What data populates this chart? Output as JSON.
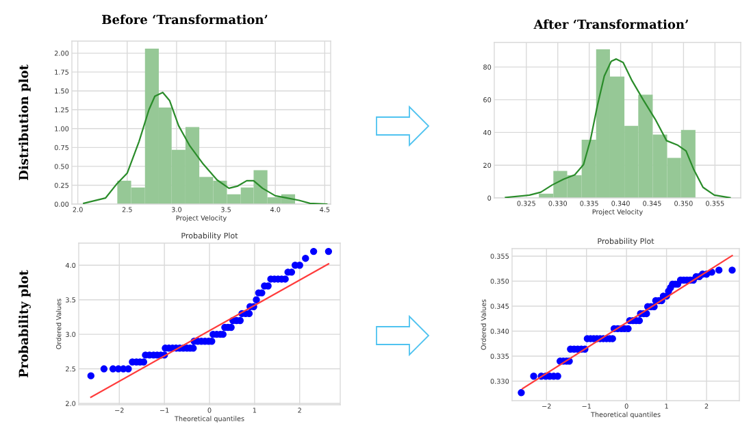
{
  "chart_data": [
    {
      "type": "histogram",
      "title": "Before ‘Transformation’",
      "xlabel": "Project Velocity",
      "annotations": [
        "Distribution plot"
      ],
      "series": [
        {
          "bins": [
            2.4,
            2.54,
            2.68,
            2.82,
            2.95,
            3.09,
            3.23,
            3.37,
            3.51,
            3.65,
            3.78,
            3.92,
            4.06,
            4.2
          ],
          "values": [
            0.31,
            0.22,
            2.06,
            1.28,
            0.72,
            1.02,
            0.36,
            0.31,
            0.13,
            0.22,
            0.45,
            0.09,
            0.13
          ],
          "color": "#96c896"
        },
        {
          "type": "line",
          "x": [
            2.06,
            2.28,
            2.39,
            2.5,
            2.62,
            2.72,
            2.78,
            2.86,
            2.93,
            3.02,
            3.13,
            3.27,
            3.41,
            3.53,
            3.62,
            3.71,
            3.78,
            3.87,
            4.0,
            4.12,
            4.24,
            4.35,
            4.52
          ],
          "values": [
            0.01,
            0.08,
            0.26,
            0.41,
            0.83,
            1.25,
            1.43,
            1.48,
            1.37,
            1.04,
            0.78,
            0.53,
            0.32,
            0.21,
            0.24,
            0.31,
            0.31,
            0.21,
            0.11,
            0.08,
            0.05,
            0.01,
            0.0
          ],
          "color": "#2a8c2a"
        }
      ],
      "xlim": [
        1.94,
        4.56
      ],
      "ylim": [
        0,
        2.16
      ],
      "xticks": [
        {
          "value": 2,
          "label": "2.0"
        },
        2.5,
        {
          "value": 3,
          "label": "3.0"
        },
        3.5,
        {
          "value": 4,
          "label": "4.0"
        },
        4.5
      ],
      "yticks": [
        {
          "value": 0,
          "label": "0.00"
        },
        {
          "value": 0.25,
          "label": "0.25"
        },
        {
          "value": 0.5,
          "label": "0.50"
        },
        {
          "value": 0.75,
          "label": "0.75"
        },
        {
          "value": 1.0,
          "label": "1.00"
        },
        {
          "value": 1.25,
          "label": "1.25"
        },
        {
          "value": 1.5,
          "label": "1.50"
        },
        {
          "value": 1.75,
          "label": "1.75"
        },
        {
          "value": 2.0,
          "label": "2.00"
        }
      ],
      "grid": true,
      "line_style": "solid"
    },
    {
      "type": "histogram",
      "title": "After ‘Transformation’",
      "xlabel": "Project Velocity",
      "series": [
        {
          "bins": [
            0.327,
            0.3293,
            0.3315,
            0.3338,
            0.3361,
            0.3383,
            0.3406,
            0.3428,
            0.3451,
            0.3474,
            0.3496,
            0.3519
          ],
          "values": [
            2.6,
            16.5,
            13.9,
            35.6,
            90.8,
            74.2,
            44,
            63.1,
            38.7,
            24.5,
            41.5
          ],
          "color": "#96c896"
        },
        {
          "type": "line",
          "x": [
            0.3217,
            0.3255,
            0.3273,
            0.3291,
            0.3309,
            0.3327,
            0.3341,
            0.3352,
            0.3363,
            0.3374,
            0.3385,
            0.3393,
            0.3404,
            0.3418,
            0.3436,
            0.3455,
            0.3473,
            0.3491,
            0.3504,
            0.3516,
            0.3531,
            0.3549,
            0.3574
          ],
          "values": [
            0.3,
            1.7,
            3.5,
            7.9,
            11.4,
            14.1,
            20.4,
            35.6,
            56.4,
            74.5,
            83.5,
            84.9,
            82.8,
            71.7,
            59.9,
            48.1,
            35,
            32.2,
            28.7,
            17.6,
            6.5,
            1.7,
            0.1
          ],
          "color": "#2a8c2a"
        }
      ],
      "xlim": [
        0.3199,
        0.3591
      ],
      "ylim": [
        0,
        95
      ],
      "xticks": [
        0.325,
        {
          "value": 0.33,
          "label": "0.330"
        },
        0.335,
        {
          "value": 0.34,
          "label": "0.340"
        },
        0.345,
        {
          "value": 0.35,
          "label": "0.350"
        },
        0.355
      ],
      "yticks": [
        0,
        20,
        40,
        60,
        80
      ],
      "grid": true,
      "line_style": "solid"
    },
    {
      "type": "scatter",
      "title": "Probability Plot",
      "xlabel": "Theoretical quantiles",
      "ylabel": "Ordered Values",
      "annotations": [
        "Probability plot"
      ],
      "series": [
        {
          "x": [
            -2.63,
            -2.34,
            -2.14,
            -2.02,
            -1.91,
            -1.8,
            -1.71,
            -1.62,
            -1.54,
            -1.46,
            -1.42,
            -1.33,
            -1.24,
            -1.16,
            -1.08,
            -1.0,
            -0.98,
            -0.9,
            -0.82,
            -0.74,
            -0.66,
            -0.58,
            -0.5,
            -0.43,
            -0.36,
            -0.34,
            -0.26,
            -0.18,
            -0.1,
            -0.02,
            0.05,
            0.08,
            0.16,
            0.24,
            0.3,
            0.34,
            0.41,
            0.48,
            0.52,
            0.6,
            0.68,
            0.72,
            0.8,
            0.88,
            0.9,
            0.98,
            1.04,
            1.09,
            1.16,
            1.22,
            1.3,
            1.36,
            1.44,
            1.52,
            1.6,
            1.68,
            1.74,
            1.82,
            1.9,
            2.0,
            2.13,
            2.31,
            2.64
          ],
          "values": [
            2.4,
            2.5,
            2.5,
            2.5,
            2.5,
            2.5,
            2.6,
            2.6,
            2.6,
            2.6,
            2.7,
            2.7,
            2.7,
            2.7,
            2.7,
            2.7,
            2.8,
            2.8,
            2.8,
            2.8,
            2.8,
            2.8,
            2.8,
            2.8,
            2.8,
            2.9,
            2.9,
            2.9,
            2.9,
            2.9,
            2.9,
            3.0,
            3.0,
            3.0,
            3.0,
            3.1,
            3.1,
            3.1,
            3.2,
            3.2,
            3.2,
            3.3,
            3.3,
            3.3,
            3.4,
            3.4,
            3.5,
            3.6,
            3.6,
            3.7,
            3.7,
            3.8,
            3.8,
            3.8,
            3.8,
            3.8,
            3.9,
            3.9,
            4.0,
            4.0,
            4.1,
            4.2,
            4.2
          ],
          "color": "#0000ff",
          "marker": "circle"
        },
        {
          "type": "line",
          "x": [
            -2.63,
            2.64
          ],
          "values": [
            2.09,
            4.02
          ],
          "color": "#ff3b3b",
          "marker": "none"
        }
      ],
      "xlim": [
        -2.9,
        2.9
      ],
      "ylim": [
        1.98,
        4.32
      ],
      "xticks": [
        {
          "value": -2,
          "label": "−2"
        },
        {
          "value": -1,
          "label": "−1"
        },
        0,
        1,
        2
      ],
      "yticks": [
        {
          "value": 2,
          "label": "2.0"
        },
        2.5,
        {
          "value": 3,
          "label": "3.0"
        },
        3.5,
        {
          "value": 4,
          "label": "4.0"
        }
      ],
      "grid": true,
      "line_style": "solid"
    },
    {
      "type": "scatter",
      "title": "Probability Plot",
      "xlabel": "Theoretical quantiles",
      "ylabel": "Ordered Values",
      "series": [
        {
          "x": [
            -2.63,
            -2.32,
            -2.13,
            -2.02,
            -1.92,
            -1.82,
            -1.72,
            -1.66,
            -1.58,
            -1.5,
            -1.43,
            -1.4,
            -1.31,
            -1.22,
            -1.13,
            -1.04,
            -0.98,
            -0.9,
            -0.82,
            -0.74,
            -0.66,
            -0.58,
            -0.5,
            -0.42,
            -0.35,
            -0.31,
            -0.22,
            -0.13,
            -0.05,
            0.04,
            0.08,
            0.16,
            0.24,
            0.32,
            0.35,
            0.43,
            0.5,
            0.53,
            0.61,
            0.69,
            0.73,
            0.81,
            0.88,
            0.92,
            1.0,
            1.05,
            1.1,
            1.15,
            1.22,
            1.28,
            1.35,
            1.43,
            1.51,
            1.59,
            1.67,
            1.74,
            1.82,
            1.9,
            2.0,
            2.13,
            2.31,
            2.64
          ],
          "values": [
            0.3277,
            0.331,
            0.331,
            0.331,
            0.331,
            0.331,
            0.331,
            0.334,
            0.334,
            0.334,
            0.334,
            0.3364,
            0.3364,
            0.3364,
            0.3364,
            0.3364,
            0.3385,
            0.3385,
            0.3385,
            0.3385,
            0.3385,
            0.3385,
            0.3385,
            0.3385,
            0.3385,
            0.3405,
            0.3405,
            0.3405,
            0.3405,
            0.3405,
            0.3421,
            0.3421,
            0.3421,
            0.3421,
            0.3435,
            0.3435,
            0.3435,
            0.3449,
            0.3449,
            0.3449,
            0.3461,
            0.3461,
            0.3461,
            0.347,
            0.347,
            0.348,
            0.3487,
            0.3494,
            0.3494,
            0.3494,
            0.3502,
            0.3502,
            0.3502,
            0.3502,
            0.3502,
            0.3509,
            0.3509,
            0.3514,
            0.3514,
            0.3518,
            0.3522,
            0.3522
          ],
          "color": "#0000ff",
          "marker": "circle"
        },
        {
          "type": "line",
          "x": [
            -2.6,
            2.64
          ],
          "values": [
            0.3285,
            0.3551
          ],
          "color": "#ff3b3b",
          "marker": "none"
        }
      ],
      "xlim": [
        -2.86,
        2.82
      ],
      "ylim": [
        0.3261,
        0.3565
      ],
      "xticks": [
        {
          "value": -2,
          "label": "−2"
        },
        {
          "value": -1,
          "label": "−1"
        },
        0,
        1,
        2
      ],
      "yticks": [
        {
          "value": 0.33,
          "label": "0.330"
        },
        0.335,
        {
          "value": 0.34,
          "label": "0.340"
        },
        0.345,
        {
          "value": 0.35,
          "label": "0.350"
        },
        0.355
      ],
      "grid": true,
      "line_style": "solid"
    }
  ]
}
